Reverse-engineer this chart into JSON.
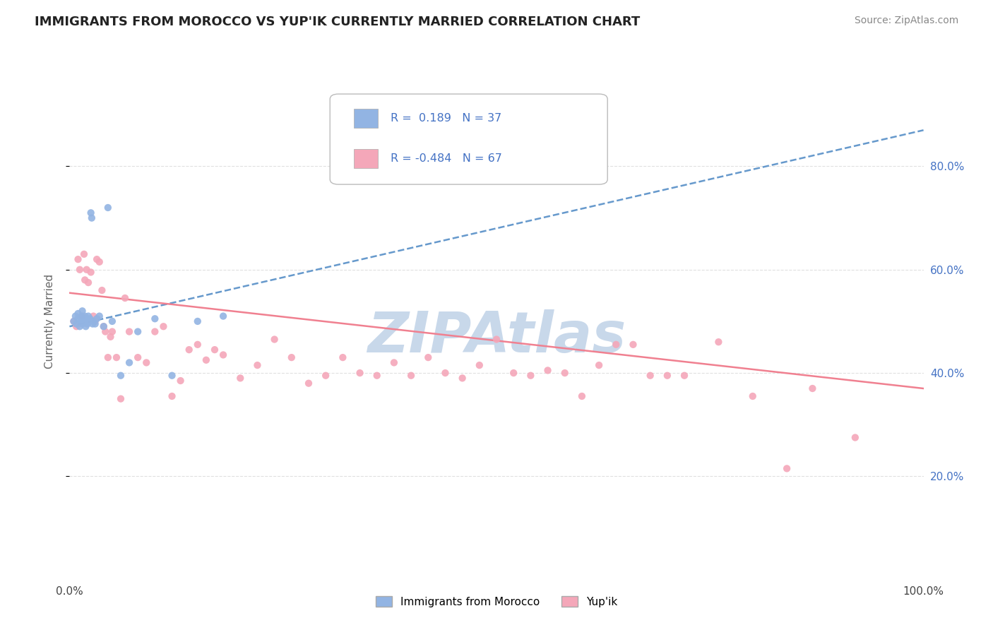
{
  "title": "IMMIGRANTS FROM MOROCCO VS YUP'IK CURRENTLY MARRIED CORRELATION CHART",
  "source_text": "Source: ZipAtlas.com",
  "ylabel": "Currently Married",
  "x_tick_labels": [
    "0.0%",
    "100.0%"
  ],
  "y_tick_labels_right": [
    "20.0%",
    "40.0%",
    "60.0%",
    "80.0%"
  ],
  "legend_label1": "Immigrants from Morocco",
  "legend_label2": "Yup'ik",
  "r1": "0.189",
  "n1": "37",
  "r2": "-0.484",
  "n2": "67",
  "color_blue": "#92B4E3",
  "color_pink": "#F4A7B9",
  "color_blue_line": "#6699CC",
  "color_pink_line": "#F08090",
  "watermark_color": "#C8D8EA",
  "background_color": "#FFFFFF",
  "grid_color": "#DDDDDD",
  "xlim": [
    0.0,
    1.0
  ],
  "ylim": [
    0.0,
    1.0
  ],
  "blue_scatter_x": [
    0.005,
    0.007,
    0.008,
    0.01,
    0.01,
    0.012,
    0.013,
    0.014,
    0.015,
    0.015,
    0.016,
    0.017,
    0.018,
    0.019,
    0.02,
    0.02,
    0.021,
    0.022,
    0.023,
    0.024,
    0.025,
    0.026,
    0.027,
    0.028,
    0.03,
    0.032,
    0.035,
    0.04,
    0.045,
    0.05,
    0.06,
    0.07,
    0.08,
    0.1,
    0.12,
    0.15,
    0.18
  ],
  "blue_scatter_y": [
    0.5,
    0.51,
    0.495,
    0.505,
    0.515,
    0.49,
    0.5,
    0.51,
    0.52,
    0.495,
    0.505,
    0.5,
    0.51,
    0.49,
    0.505,
    0.5,
    0.495,
    0.51,
    0.5,
    0.505,
    0.71,
    0.7,
    0.495,
    0.5,
    0.495,
    0.505,
    0.51,
    0.49,
    0.72,
    0.5,
    0.395,
    0.42,
    0.48,
    0.505,
    0.395,
    0.5,
    0.51
  ],
  "blue_trend_x": [
    0.0,
    1.0
  ],
  "blue_trend_y": [
    0.49,
    0.87
  ],
  "pink_trend_x": [
    0.0,
    1.0
  ],
  "pink_trend_y": [
    0.555,
    0.37
  ],
  "pink_scatter_x": [
    0.005,
    0.008,
    0.01,
    0.012,
    0.015,
    0.017,
    0.018,
    0.02,
    0.022,
    0.025,
    0.028,
    0.03,
    0.032,
    0.035,
    0.038,
    0.04,
    0.042,
    0.045,
    0.048,
    0.05,
    0.055,
    0.06,
    0.065,
    0.07,
    0.08,
    0.09,
    0.1,
    0.11,
    0.12,
    0.13,
    0.14,
    0.15,
    0.16,
    0.17,
    0.18,
    0.2,
    0.22,
    0.24,
    0.26,
    0.28,
    0.3,
    0.32,
    0.34,
    0.36,
    0.38,
    0.4,
    0.42,
    0.44,
    0.46,
    0.48,
    0.5,
    0.52,
    0.54,
    0.56,
    0.58,
    0.6,
    0.62,
    0.64,
    0.66,
    0.68,
    0.7,
    0.72,
    0.76,
    0.8,
    0.84,
    0.87,
    0.92
  ],
  "pink_scatter_y": [
    0.5,
    0.49,
    0.62,
    0.6,
    0.51,
    0.63,
    0.58,
    0.6,
    0.575,
    0.595,
    0.51,
    0.5,
    0.62,
    0.615,
    0.56,
    0.49,
    0.48,
    0.43,
    0.47,
    0.48,
    0.43,
    0.35,
    0.545,
    0.48,
    0.43,
    0.42,
    0.48,
    0.49,
    0.355,
    0.385,
    0.445,
    0.455,
    0.425,
    0.445,
    0.435,
    0.39,
    0.415,
    0.465,
    0.43,
    0.38,
    0.395,
    0.43,
    0.4,
    0.395,
    0.42,
    0.395,
    0.43,
    0.4,
    0.39,
    0.415,
    0.465,
    0.4,
    0.395,
    0.405,
    0.4,
    0.355,
    0.415,
    0.455,
    0.455,
    0.395,
    0.395,
    0.395,
    0.46,
    0.355,
    0.215,
    0.37,
    0.275
  ]
}
